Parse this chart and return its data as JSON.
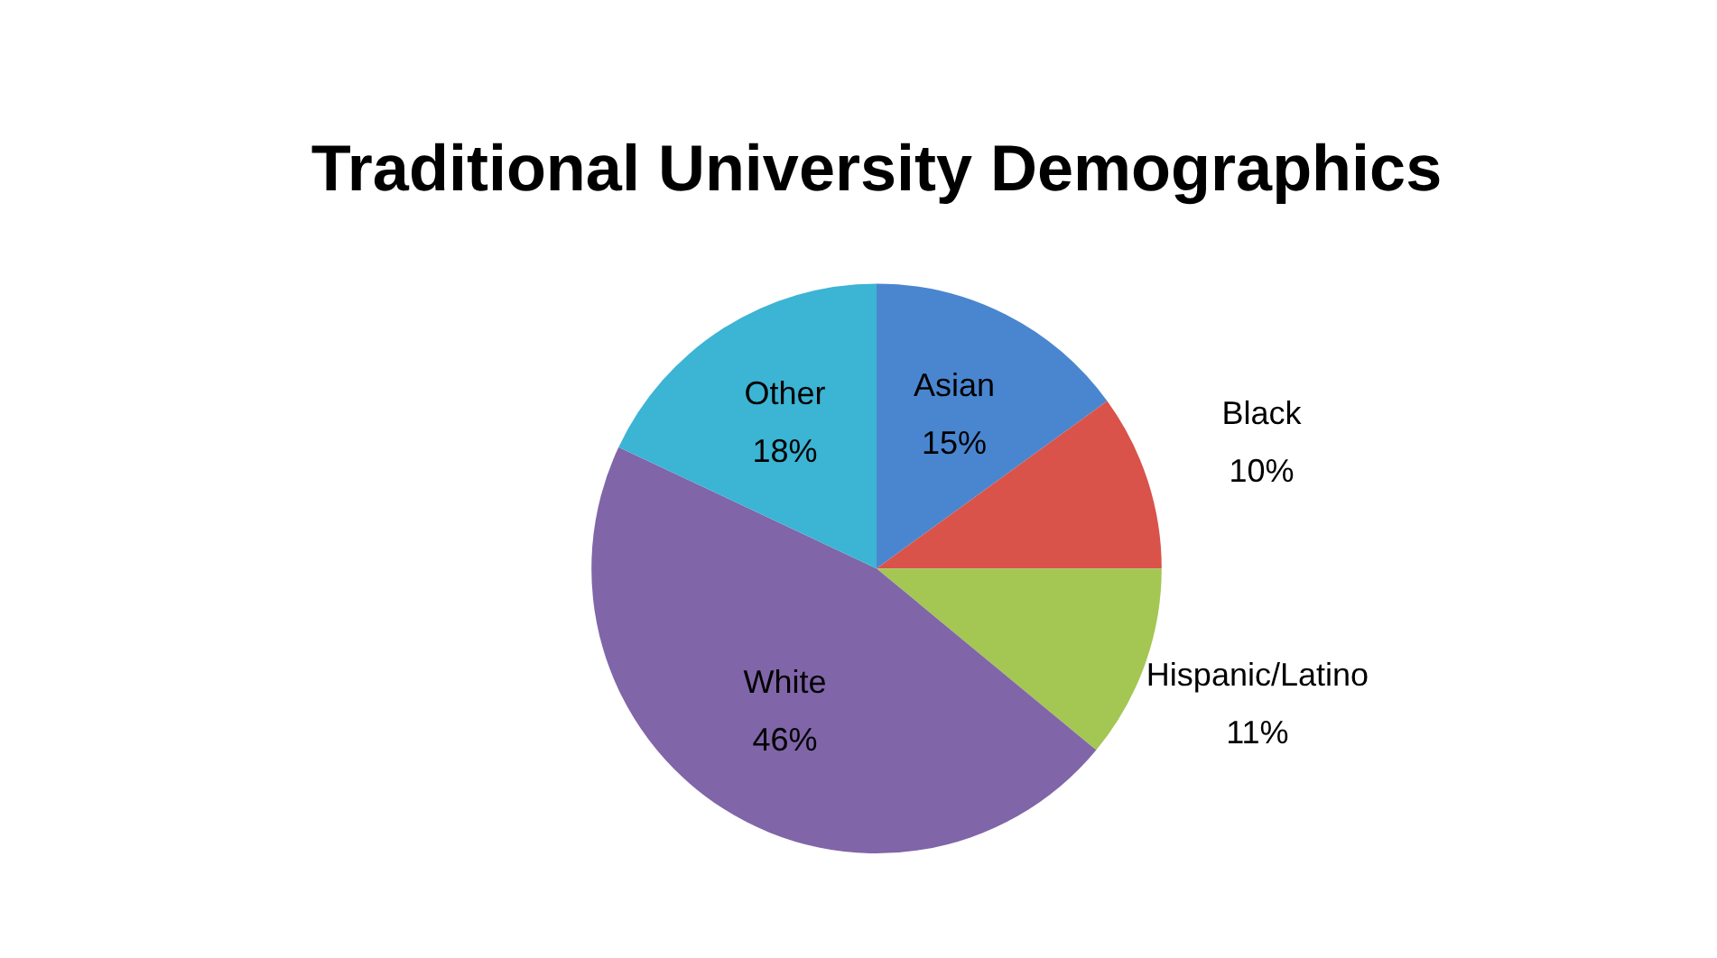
{
  "chart_data": {
    "type": "pie",
    "title": "Traditional University Demographics",
    "categories": [
      "Asian",
      "Black",
      "Hispanic/Latino",
      "White",
      "Other"
    ],
    "values": [
      15,
      10,
      11,
      46,
      18
    ],
    "value_labels": [
      "15%",
      "10%",
      "11%",
      "46%",
      "18%"
    ],
    "colors": [
      "#4a86d0",
      "#d9534a",
      "#a4c653",
      "#8065a8",
      "#3cb4d4"
    ],
    "legend": false
  }
}
